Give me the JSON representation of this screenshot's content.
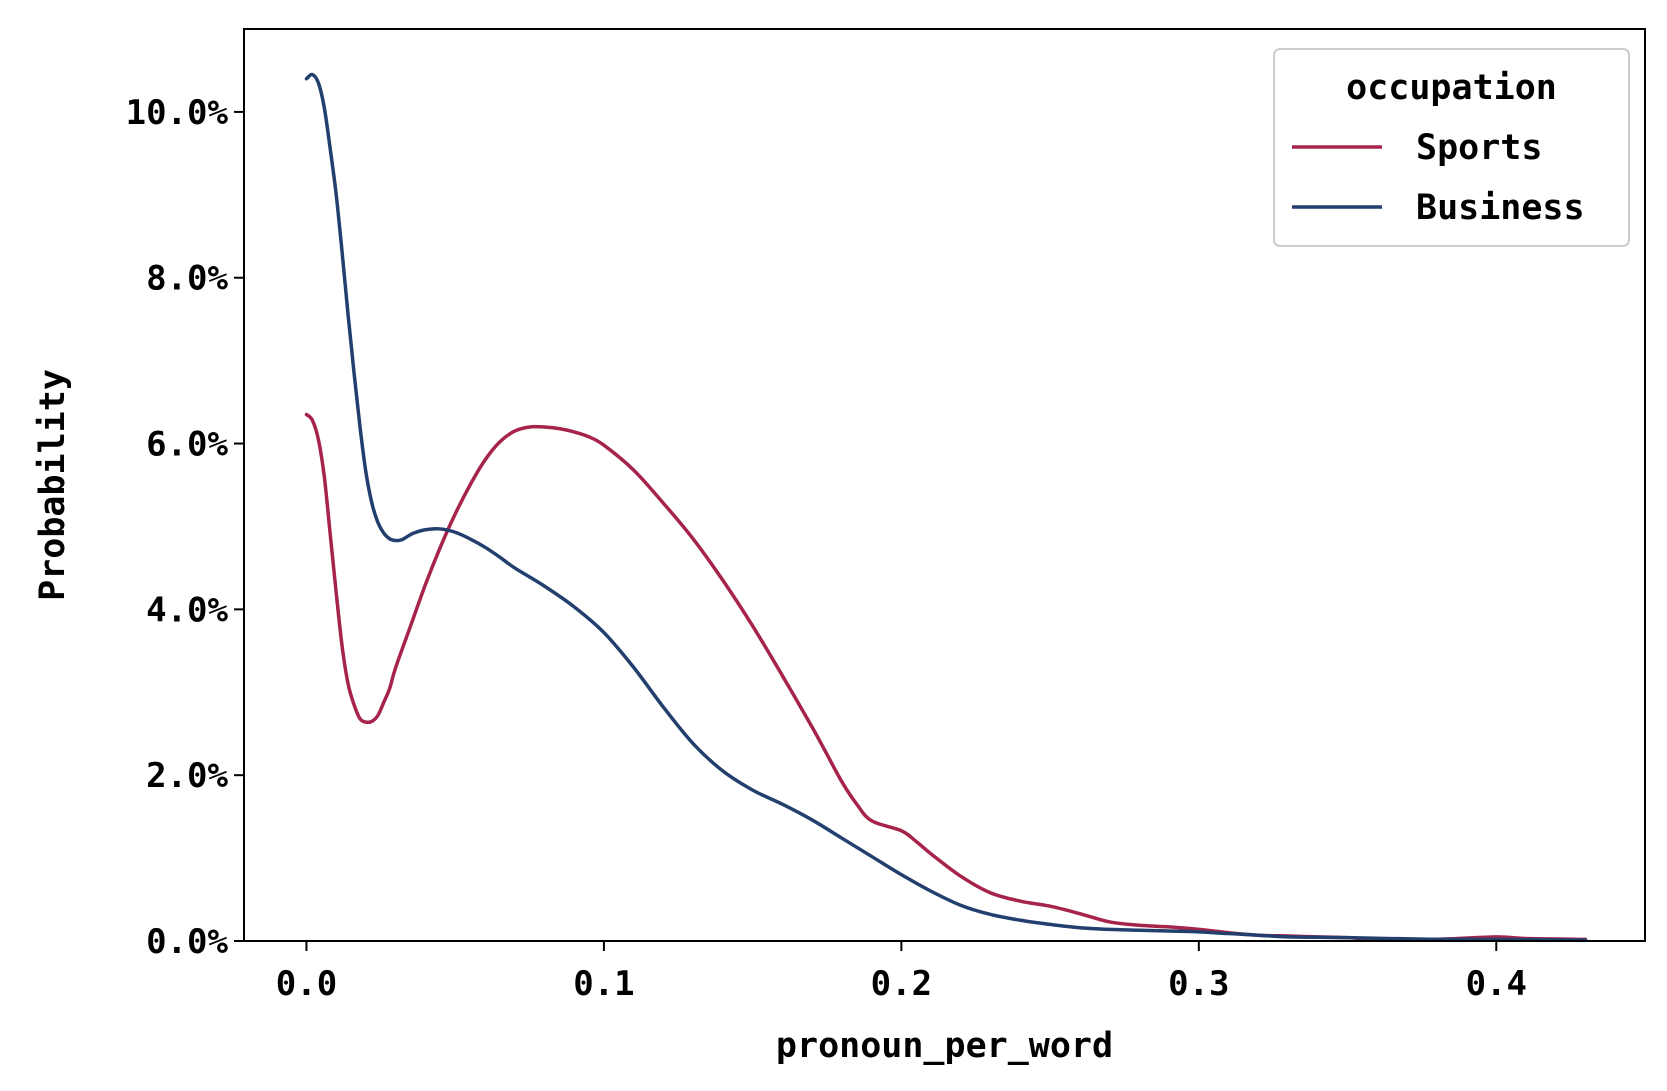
{
  "chart_data": {
    "type": "line",
    "title": "",
    "xlabel": "pronoun_per_word",
    "ylabel": "Probability",
    "xlim": [
      -0.021,
      0.45
    ],
    "ylim": [
      0,
      11
    ],
    "x_ticks": [
      0.0,
      0.1,
      0.2,
      0.3,
      0.4
    ],
    "x_tick_labels": [
      "0.0",
      "0.1",
      "0.2",
      "0.3",
      "0.4"
    ],
    "y_ticks": [
      0,
      2,
      4,
      6,
      8,
      10
    ],
    "y_tick_labels": [
      "0.0%",
      "2.0%",
      "4.0%",
      "6.0%",
      "8.0%",
      "10.0%"
    ],
    "grid": false,
    "legend": {
      "title": "occupation",
      "placement": "top-right",
      "entries": [
        "Sports",
        "Business"
      ]
    },
    "series": [
      {
        "name": "Sports",
        "color": "#a6234a",
        "x": [
          0.0,
          0.002,
          0.004,
          0.006,
          0.008,
          0.01,
          0.012,
          0.014,
          0.016,
          0.018,
          0.02,
          0.022,
          0.024,
          0.026,
          0.028,
          0.03,
          0.035,
          0.04,
          0.045,
          0.05,
          0.055,
          0.06,
          0.065,
          0.07,
          0.075,
          0.08,
          0.085,
          0.09,
          0.095,
          0.1,
          0.11,
          0.12,
          0.13,
          0.14,
          0.15,
          0.16,
          0.17,
          0.175,
          0.18,
          0.185,
          0.19,
          0.2,
          0.205,
          0.21,
          0.22,
          0.23,
          0.24,
          0.25,
          0.26,
          0.27,
          0.28,
          0.29,
          0.3,
          0.31,
          0.32,
          0.33,
          0.34,
          0.35,
          0.36,
          0.38,
          0.4,
          0.41,
          0.43
        ],
        "values": [
          6.35,
          6.28,
          6.05,
          5.6,
          4.9,
          4.2,
          3.55,
          3.1,
          2.85,
          2.68,
          2.64,
          2.65,
          2.72,
          2.88,
          3.05,
          3.3,
          3.8,
          4.3,
          4.75,
          5.15,
          5.5,
          5.8,
          6.02,
          6.15,
          6.2,
          6.2,
          6.18,
          6.14,
          6.08,
          5.98,
          5.68,
          5.28,
          4.85,
          4.35,
          3.8,
          3.2,
          2.58,
          2.25,
          1.92,
          1.65,
          1.45,
          1.33,
          1.2,
          1.05,
          0.78,
          0.58,
          0.48,
          0.42,
          0.33,
          0.23,
          0.19,
          0.17,
          0.14,
          0.1,
          0.07,
          0.06,
          0.05,
          0.04,
          0.02,
          0.02,
          0.05,
          0.03,
          0.02
        ]
      },
      {
        "name": "Business",
        "color": "#223f6e",
        "x": [
          0.0,
          0.002,
          0.004,
          0.006,
          0.008,
          0.01,
          0.012,
          0.014,
          0.016,
          0.018,
          0.02,
          0.022,
          0.024,
          0.026,
          0.028,
          0.03,
          0.032,
          0.034,
          0.036,
          0.04,
          0.045,
          0.05,
          0.055,
          0.06,
          0.065,
          0.07,
          0.08,
          0.09,
          0.1,
          0.11,
          0.12,
          0.13,
          0.14,
          0.15,
          0.16,
          0.17,
          0.18,
          0.19,
          0.2,
          0.21,
          0.22,
          0.23,
          0.24,
          0.25,
          0.26,
          0.27,
          0.28,
          0.29,
          0.3,
          0.31,
          0.32,
          0.33,
          0.35,
          0.38,
          0.4,
          0.43
        ],
        "values": [
          10.4,
          10.45,
          10.35,
          10.05,
          9.55,
          9.0,
          8.3,
          7.55,
          6.85,
          6.2,
          5.65,
          5.28,
          5.05,
          4.92,
          4.85,
          4.83,
          4.84,
          4.88,
          4.92,
          4.96,
          4.97,
          4.93,
          4.85,
          4.75,
          4.63,
          4.5,
          4.28,
          4.03,
          3.72,
          3.3,
          2.82,
          2.38,
          2.05,
          1.82,
          1.65,
          1.46,
          1.24,
          1.02,
          0.8,
          0.6,
          0.43,
          0.32,
          0.25,
          0.2,
          0.16,
          0.14,
          0.13,
          0.12,
          0.11,
          0.09,
          0.07,
          0.05,
          0.04,
          0.02,
          0.02,
          0.01
        ]
      }
    ]
  }
}
